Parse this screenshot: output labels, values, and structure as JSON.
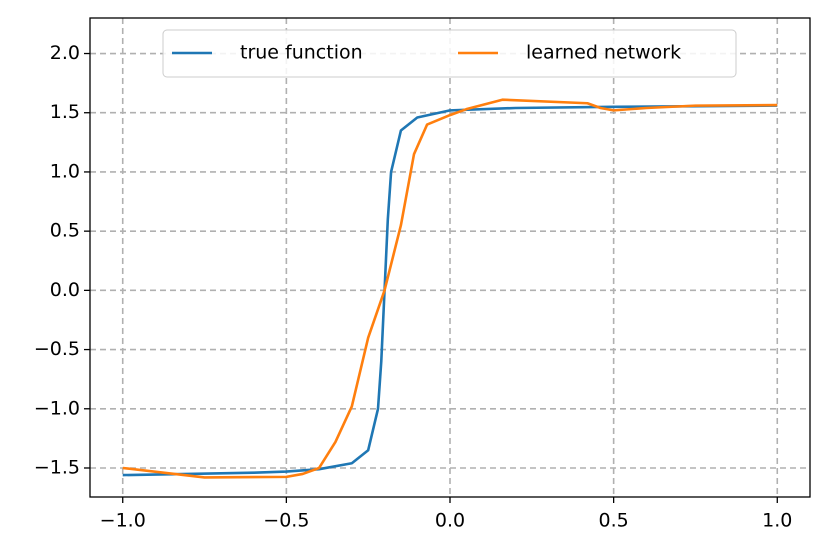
{
  "chart_data": {
    "type": "line",
    "series": [
      {
        "name": "true function",
        "color": "#1f77b4",
        "x": [
          -1.0,
          -0.8,
          -0.6,
          -0.5,
          -0.4,
          -0.3,
          -0.25,
          -0.22,
          -0.21,
          -0.2,
          -0.19,
          -0.18,
          -0.15,
          -0.1,
          0.0,
          0.2,
          0.5,
          1.0
        ],
        "values": [
          -1.56,
          -1.55,
          -1.54,
          -1.53,
          -1.51,
          -1.46,
          -1.35,
          -1.0,
          -0.6,
          0.0,
          0.6,
          1.0,
          1.35,
          1.46,
          1.52,
          1.54,
          1.55,
          1.56
        ]
      },
      {
        "name": "learned network",
        "color": "#ff7f0e",
        "x": [
          -1.0,
          -0.75,
          -0.5,
          -0.45,
          -0.4,
          -0.35,
          -0.3,
          -0.25,
          -0.2,
          -0.15,
          -0.11,
          -0.07,
          0.0,
          0.05,
          0.16,
          0.42,
          0.46,
          0.5,
          0.6,
          0.75,
          1.0
        ],
        "values": [
          -1.5,
          -1.58,
          -1.575,
          -1.55,
          -1.5,
          -1.28,
          -0.98,
          -0.4,
          0.0,
          0.55,
          1.15,
          1.4,
          1.48,
          1.53,
          1.61,
          1.58,
          1.54,
          1.52,
          1.54,
          1.56,
          1.565
        ]
      }
    ],
    "xlim": [
      -1.1,
      1.1
    ],
    "ylim": [
      -1.745,
      2.3
    ],
    "xticks": [
      {
        "value": -1.0,
        "label": "−1.0"
      },
      {
        "value": -0.5,
        "label": "−0.5"
      },
      {
        "value": 0.0,
        "label": "0.0"
      },
      {
        "value": 0.5,
        "label": "0.5"
      },
      {
        "value": 1.0,
        "label": "1.0"
      }
    ],
    "yticks": [
      {
        "value": -1.5,
        "label": "−1.5"
      },
      {
        "value": -1.0,
        "label": "−1.0"
      },
      {
        "value": -0.5,
        "label": "−0.5"
      },
      {
        "value": 0.0,
        "label": "0.0"
      },
      {
        "value": 0.5,
        "label": "0.5"
      },
      {
        "value": 1.0,
        "label": "1.0"
      },
      {
        "value": 1.5,
        "label": "1.5"
      },
      {
        "value": 2.0,
        "label": "2.0"
      }
    ],
    "grid": true,
    "legend": "top"
  }
}
